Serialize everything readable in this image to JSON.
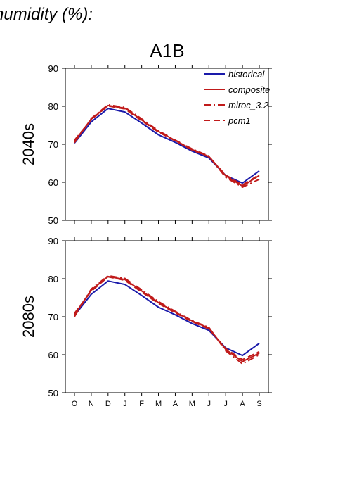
{
  "figure": {
    "heading": "humidity (%):",
    "title": "A1B",
    "colors": {
      "historical": "#1a1aaa",
      "projection": "#c01a1a",
      "axis": "#000000"
    }
  },
  "chart_data": [
    {
      "type": "line",
      "row_label": "2040s",
      "categories": [
        "O",
        "N",
        "D",
        "J",
        "F",
        "M",
        "A",
        "M",
        "J",
        "J",
        "A",
        "S"
      ],
      "ylim": [
        50,
        90
      ],
      "yticks": [
        50,
        60,
        70,
        80,
        90
      ],
      "legend_position": "top-right",
      "series": [
        {
          "name": "historical",
          "style": "solid",
          "color": "#1a1aaa",
          "values": [
            70.3,
            75.9,
            79.4,
            78.5,
            75.6,
            72.5,
            70.5,
            68.2,
            66.4,
            61.8,
            59.8,
            63.0
          ]
        },
        {
          "name": "composite",
          "style": "solid",
          "color": "#c01a1a",
          "values": [
            70.8,
            76.6,
            80.2,
            79.5,
            76.4,
            73.4,
            71.0,
            68.6,
            66.8,
            61.7,
            59.0,
            61.8
          ]
        },
        {
          "name": "miroc_3.2",
          "style": "dashdot",
          "color": "#c01a1a",
          "values": [
            70.4,
            76.8,
            80.4,
            79.7,
            76.7,
            73.6,
            71.1,
            68.8,
            66.9,
            61.3,
            58.7,
            60.8
          ]
        },
        {
          "name": "pcm1",
          "style": "dashed",
          "color": "#c01a1a",
          "values": [
            71.1,
            76.5,
            80.1,
            79.3,
            76.2,
            73.2,
            70.9,
            68.5,
            66.7,
            61.9,
            59.3,
            62.0
          ]
        }
      ]
    },
    {
      "type": "line",
      "row_label": "2080s",
      "categories": [
        "O",
        "N",
        "D",
        "J",
        "F",
        "M",
        "A",
        "M",
        "J",
        "J",
        "A",
        "S"
      ],
      "ylim": [
        50,
        90
      ],
      "yticks": [
        50,
        60,
        70,
        80,
        90
      ],
      "series": [
        {
          "name": "historical",
          "style": "solid",
          "color": "#1a1aaa",
          "values": [
            70.3,
            75.9,
            79.4,
            78.5,
            75.6,
            72.5,
            70.5,
            68.2,
            66.4,
            61.8,
            59.8,
            63.0
          ]
        },
        {
          "name": "composite",
          "style": "solid",
          "color": "#c01a1a",
          "values": [
            70.6,
            77.0,
            80.6,
            79.8,
            76.8,
            73.7,
            71.2,
            68.9,
            67.0,
            61.4,
            58.2,
            60.4
          ]
        },
        {
          "name": "miroc_3.2",
          "style": "dashdot",
          "color": "#c01a1a",
          "values": [
            70.0,
            77.3,
            80.8,
            80.1,
            77.1,
            74.0,
            71.4,
            69.0,
            67.2,
            61.0,
            57.6,
            60.0
          ]
        },
        {
          "name": "pcm1",
          "style": "dashed",
          "color": "#c01a1a",
          "values": [
            70.9,
            76.7,
            80.5,
            79.6,
            76.5,
            73.5,
            71.0,
            68.7,
            66.8,
            61.6,
            58.7,
            60.8
          ]
        }
      ]
    }
  ]
}
